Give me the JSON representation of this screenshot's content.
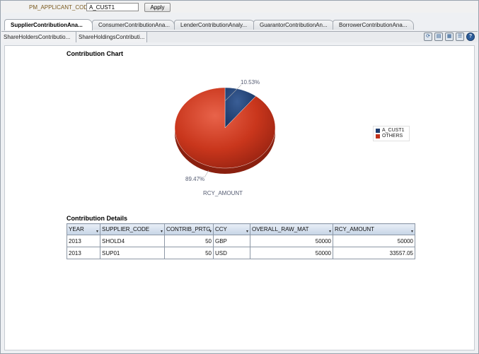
{
  "prompt": {
    "label": "PM_APPLICANT_CODE",
    "value": "A_CUST1",
    "apply_label": "Apply"
  },
  "tabs": [
    {
      "label": "SupplierContributionAna...",
      "active": true
    },
    {
      "label": "ConsumerContributionAna...",
      "active": false
    },
    {
      "label": "LenderContributionAnaly...",
      "active": false
    },
    {
      "label": "GuarantorContributionAn...",
      "active": false
    },
    {
      "label": "BorrowerContributionAna...",
      "active": false
    }
  ],
  "subtabs": [
    {
      "label": "ShareHoldersContributio..."
    },
    {
      "label": "ShareHoldingsContributi..."
    }
  ],
  "toolbar_icons": [
    "refresh-icon",
    "print-icon",
    "export-icon",
    "options-icon",
    "help-icon"
  ],
  "chart_title": "Contribution Chart",
  "chart_data": {
    "type": "pie",
    "title": "Contribution Chart",
    "measure_label": "RCY_AMOUNT",
    "categories": [
      "A_CUST1",
      "OTHERS"
    ],
    "values": [
      10.53,
      89.47
    ],
    "labels": [
      "10.53%",
      "89.47%"
    ],
    "colors": [
      "#1f3d6e",
      "#c0311a"
    ],
    "legend_position": "right"
  },
  "details_title": "Contribution Details",
  "table": {
    "columns": [
      "YEAR",
      "SUPPLIER_CODE",
      "CONTRIB_PRTG",
      "CCY",
      "OVERALL_RAW_MAT",
      "RCY_AMOUNT"
    ],
    "rows": [
      [
        "2013",
        "SHOLD4",
        "50",
        "GBP",
        "50000",
        "50000"
      ],
      [
        "2013",
        "SUP01",
        "50",
        "USD",
        "50000",
        "33557.05"
      ]
    ]
  }
}
